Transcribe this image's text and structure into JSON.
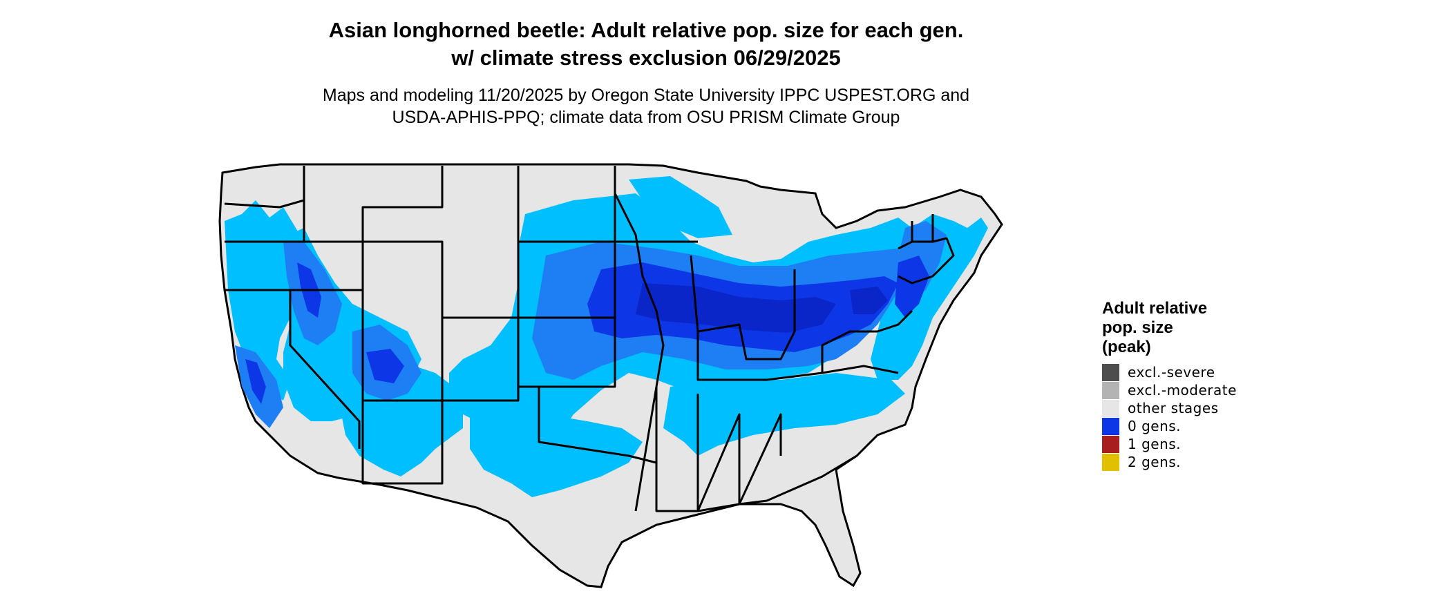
{
  "title_line1": "Asian longhorned beetle: Adult relative pop. size for each gen.",
  "title_line2": "w/ climate stress exclusion 06/29/2025",
  "subtitle_line1": "Maps and modeling 11/20/2025 by Oregon State University IPPC USPEST.ORG and",
  "subtitle_line2": "USDA-APHIS-PPQ; climate data from OSU PRISM Climate Group",
  "legend": {
    "title_line1": "Adult relative",
    "title_line2": "pop. size",
    "title_line3": "(peak)",
    "items": [
      {
        "label": "excl.-severe",
        "color": "#4d4d4d"
      },
      {
        "label": "excl.-moderate",
        "color": "#b3b3b3"
      },
      {
        "label": "other stages",
        "color": "#e6e6e6"
      },
      {
        "label": "0 gens.",
        "color": "#0d37e6"
      },
      {
        "label": "1 gens.",
        "color": "#a81d1d"
      },
      {
        "label": "2 gens.",
        "color": "#e0c000"
      }
    ]
  },
  "map_colors": {
    "background_land": "#e6e6e6",
    "light_blue": "#00bfff",
    "mid_blue": "#1e7ff5",
    "dark_blue": "#0d37e6",
    "deep_blue": "#0a26c8",
    "borders": "#000000"
  }
}
